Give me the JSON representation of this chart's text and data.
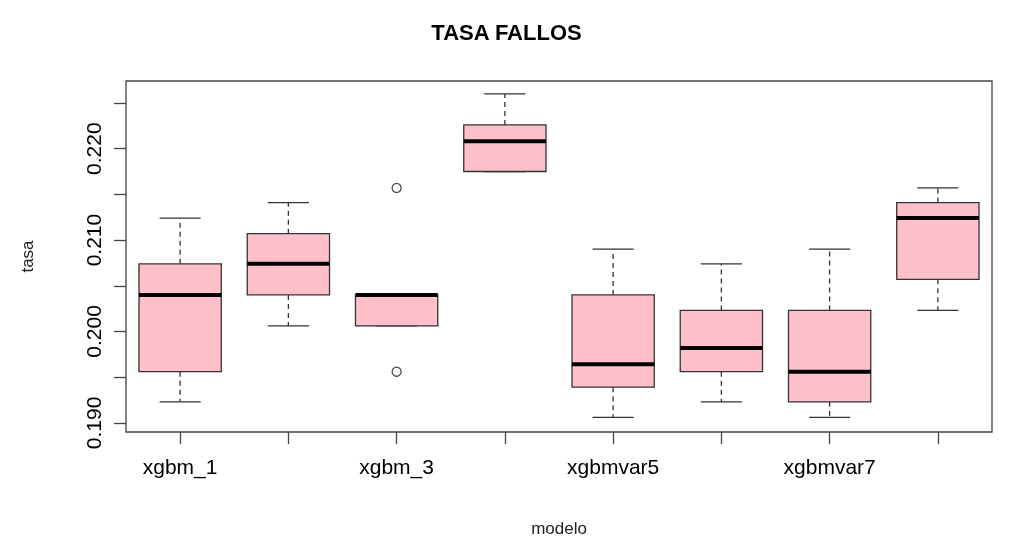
{
  "chart_data": {
    "type": "box",
    "title": "TASA FALLOS",
    "xlabel": "modelo",
    "ylabel": "tasa",
    "categories": [
      "xgbm_1",
      null,
      "xgbm_3",
      null,
      "xgbmvar5",
      null,
      "xgbmvar7",
      null
    ],
    "color": "#ffc0cb",
    "boxes": [
      {
        "low": 0.1923,
        "q1": 0.1956,
        "median": 0.204,
        "q3": 0.2074,
        "high": 0.2124
      },
      {
        "low": 0.2006,
        "q1": 0.204,
        "median": 0.2074,
        "q3": 0.2107,
        "high": 0.2141
      },
      {
        "low": 0.2006,
        "q1": 0.2006,
        "median": 0.204,
        "q3": 0.204,
        "high": 0.204,
        "outliers": [
          0.2157,
          0.1956
        ]
      },
      {
        "low": 0.2175,
        "q1": 0.2175,
        "median": 0.2208,
        "q3": 0.2226,
        "high": 0.226
      },
      {
        "low": 0.1906,
        "q1": 0.1939,
        "median": 0.1964,
        "q3": 0.204,
        "high": 0.209
      },
      {
        "low": 0.1923,
        "q1": 0.1956,
        "median": 0.1982,
        "q3": 0.2023,
        "high": 0.2074
      },
      {
        "low": 0.1906,
        "q1": 0.1923,
        "median": 0.1956,
        "q3": 0.2023,
        "high": 0.209
      },
      {
        "low": 0.2023,
        "q1": 0.2057,
        "median": 0.2124,
        "q3": 0.2141,
        "high": 0.2157
      }
    ],
    "ylim": [
      0.189,
      0.2274
    ],
    "yticks": [
      {
        "value": 0.19,
        "label": "0.190"
      },
      {
        "value": 0.195,
        "label": null
      },
      {
        "value": 0.2,
        "label": "0.200"
      },
      {
        "value": 0.205,
        "label": null
      },
      {
        "value": 0.21,
        "label": "0.210"
      },
      {
        "value": 0.215,
        "label": null
      },
      {
        "value": 0.22,
        "label": "0.220"
      },
      {
        "value": 0.225,
        "label": null
      }
    ],
    "grid": false
  }
}
